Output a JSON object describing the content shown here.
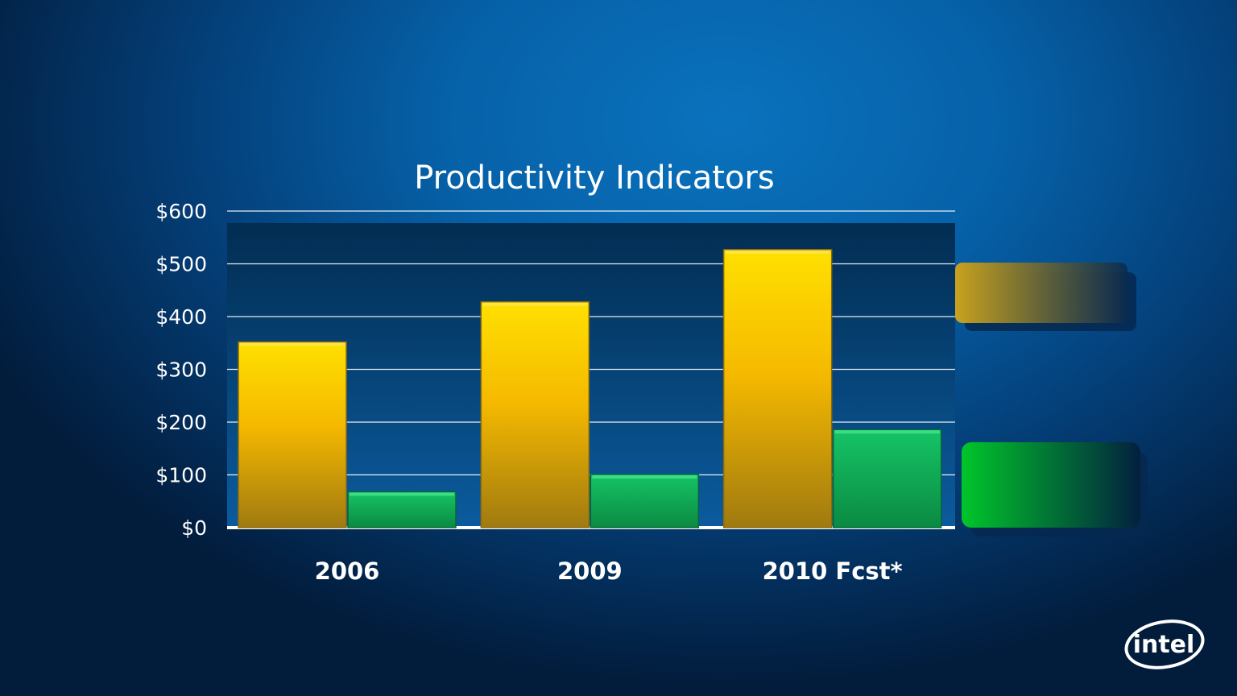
{
  "slide": {
    "logo_text": "intel"
  },
  "colors": {
    "primary_bar": "#f7c200",
    "secondary_bar": "#0fb55a",
    "gridline": "#ffffff",
    "plot_bg": "#0a3d6a"
  },
  "chart_data": {
    "type": "bar",
    "title": "Productivity Indicators",
    "categories": [
      "2006",
      "2009",
      "2010 Fcst*"
    ],
    "series": [
      {
        "values": [
          352,
          428,
          527
        ],
        "color": "#f7c200"
      },
      {
        "values": [
          68,
          101,
          186
        ],
        "color": "#0fb55a"
      }
    ],
    "ylim": [
      0,
      600
    ],
    "yticks": [
      0,
      100,
      200,
      300,
      400,
      500,
      600
    ],
    "ytick_labels": [
      "$0",
      "$100",
      "$200",
      "$300",
      "$400",
      "$500",
      "$600"
    ],
    "grid": true,
    "legend_position": "right"
  }
}
